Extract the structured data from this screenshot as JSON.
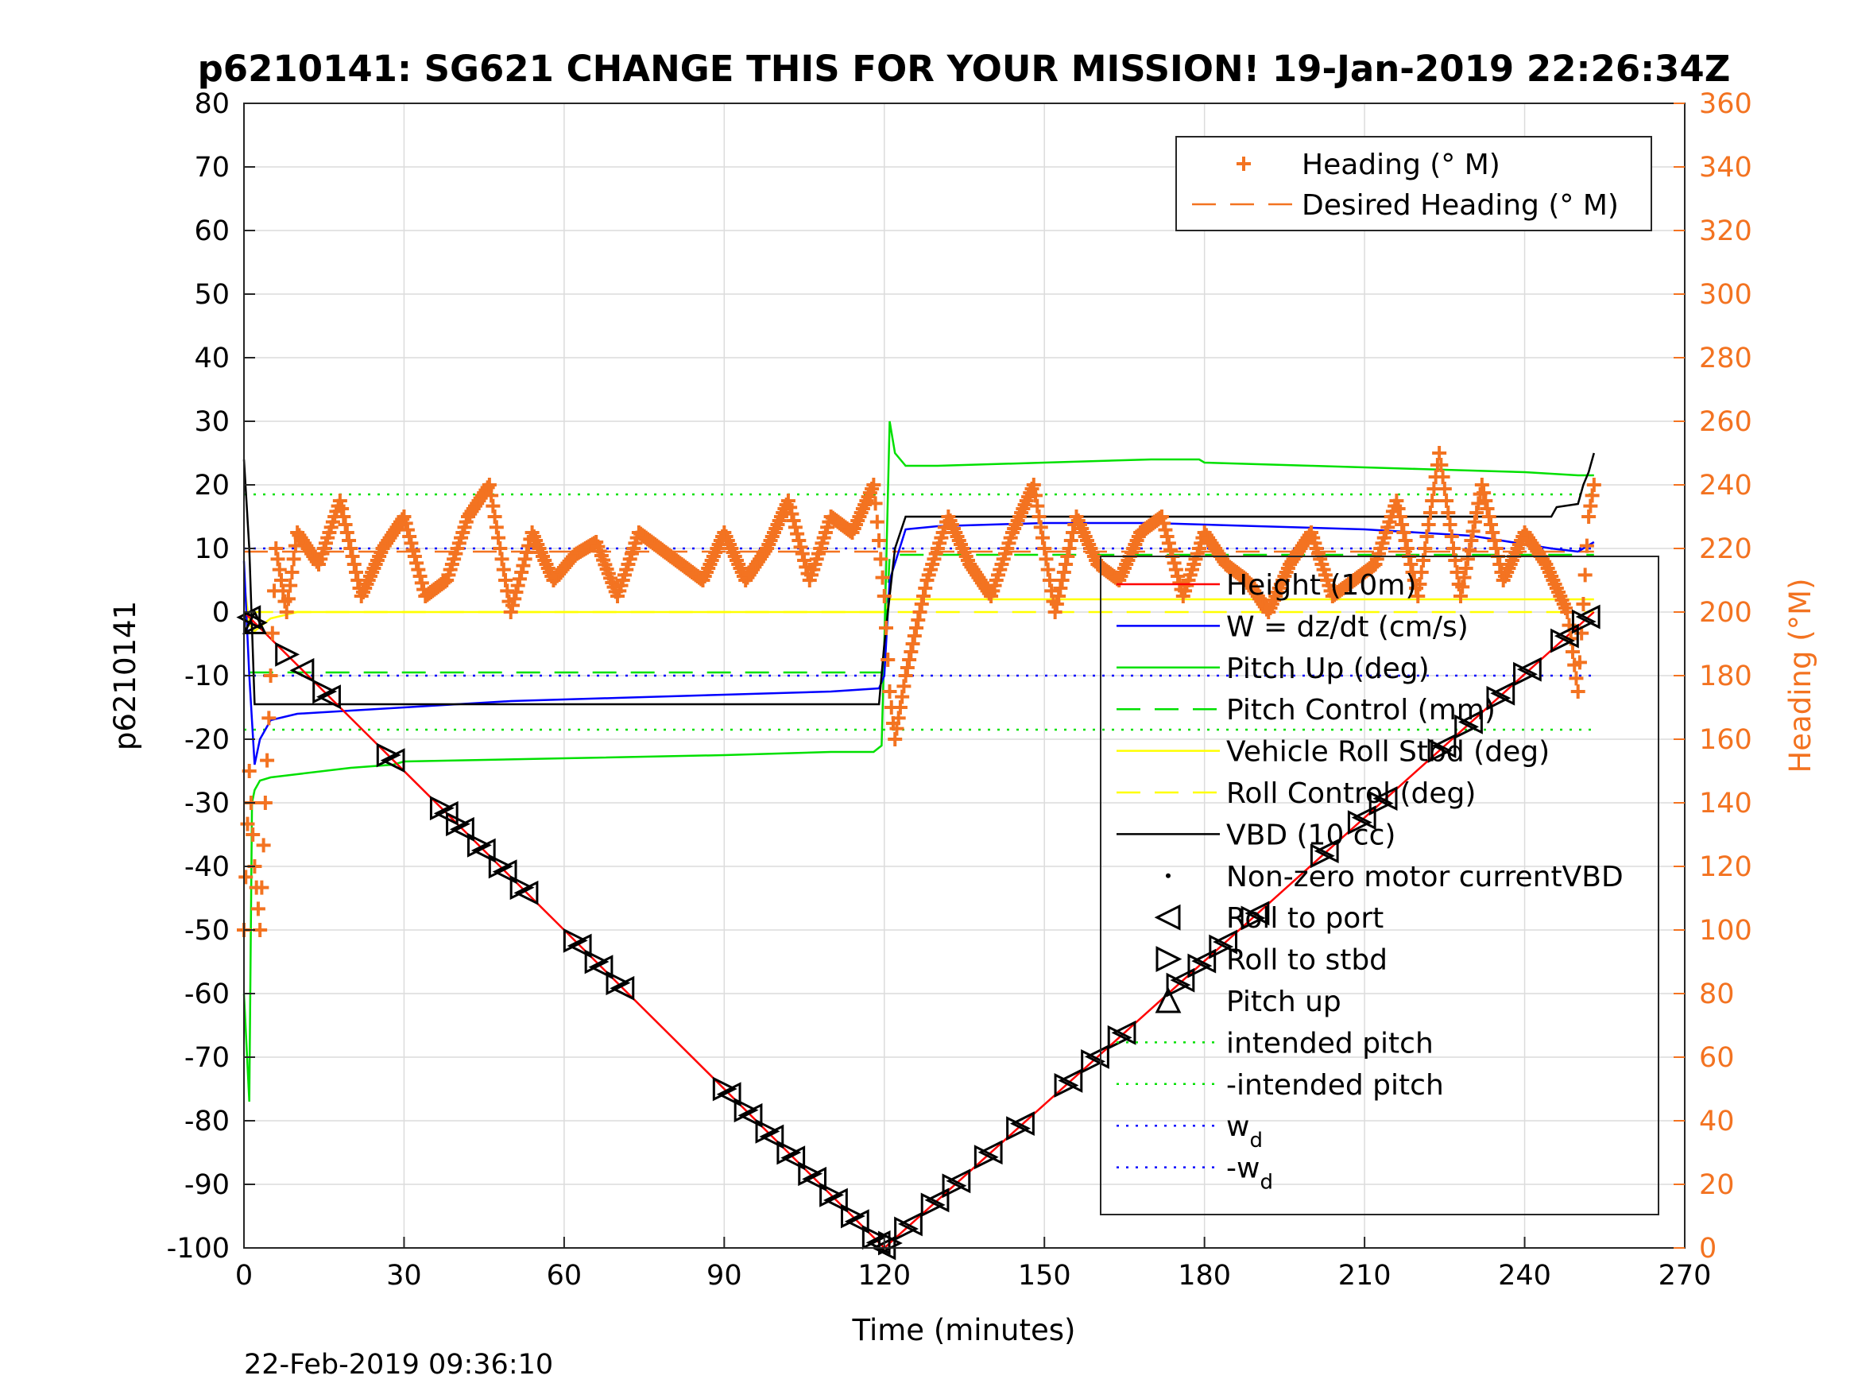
{
  "chart_data": {
    "type": "line",
    "title": "p6210141: SG621 CHANGE THIS FOR YOUR MISSION! 19-Jan-2019 22:26:34Z",
    "xlabel": "Time (minutes)",
    "ylabel_left": "p6210141",
    "ylabel_right": "Heading (°M)",
    "footer": "22-Feb-2019 09:36:10",
    "xlim": [
      0,
      270
    ],
    "ylim_left": [
      -100,
      80
    ],
    "ylim_right": [
      0,
      360
    ],
    "x_ticks": [
      "0",
      "30",
      "60",
      "90",
      "120",
      "150",
      "180",
      "210",
      "240",
      "270"
    ],
    "y_ticks_left": [
      "-100",
      "-90",
      "-80",
      "-70",
      "-60",
      "-50",
      "-40",
      "-30",
      "-20",
      "-10",
      "0",
      "10",
      "20",
      "30",
      "40",
      "50",
      "60",
      "70",
      "80"
    ],
    "y_ticks_right": [
      "0",
      "20",
      "40",
      "60",
      "80",
      "100",
      "120",
      "140",
      "160",
      "180",
      "200",
      "220",
      "240",
      "260",
      "280",
      "300",
      "320",
      "340",
      "360"
    ],
    "grid": true,
    "legend_right_axis": [
      {
        "label": "Heading (° M)",
        "style": "plus",
        "color": "#f37321"
      },
      {
        "label": "Desired Heading (° M)",
        "style": "dash",
        "color": "#f37321"
      }
    ],
    "legend_left_axis": [
      {
        "label": "Height (10m)",
        "style": "line",
        "color": "#ff0000"
      },
      {
        "label": "W = dz/dt (cm/s)",
        "style": "line",
        "color": "#0000ff"
      },
      {
        "label": "Pitch Up (deg)",
        "style": "line",
        "color": "#00e000"
      },
      {
        "label": "Pitch Control (mm)",
        "style": "dash",
        "color": "#00e000"
      },
      {
        "label": "Vehicle Roll Stbd (deg)",
        "style": "line",
        "color": "#ffff00"
      },
      {
        "label": "Roll Control (deg)",
        "style": "dash",
        "color": "#ffff00"
      },
      {
        "label": "VBD (10 cc)",
        "style": "line",
        "color": "#000000"
      },
      {
        "label": "Non-zero motor currentVBD",
        "style": "dot",
        "color": "#000000"
      },
      {
        "label": "Roll to port",
        "style": "tri-left",
        "color": "#000000"
      },
      {
        "label": "Roll to stbd",
        "style": "tri-right",
        "color": "#000000"
      },
      {
        "label": "Pitch up",
        "style": "tri-up",
        "color": "#000000"
      },
      {
        "label": "intended pitch",
        "style": "dot-line",
        "color": "#00e000"
      },
      {
        "label": "-intended pitch",
        "style": "dot-line",
        "color": "#00e000"
      },
      {
        "label": "w",
        "sub": "d",
        "style": "dot-line",
        "color": "#0000ff"
      },
      {
        "label": "-w",
        "sub": "d",
        "style": "dot-line",
        "color": "#0000ff"
      }
    ],
    "series": [
      {
        "name": "Height (10m)",
        "axis": "left",
        "color": "#ff0000",
        "x": [
          0,
          120,
          253
        ],
        "y": [
          0,
          -100,
          0
        ]
      },
      {
        "name": "W = dz/dt (cm/s)",
        "axis": "left",
        "color": "#0000ff",
        "x": [
          0,
          1,
          2,
          3,
          5,
          10,
          20,
          30,
          50,
          70,
          90,
          110,
          119,
          120,
          121,
          124,
          130,
          150,
          170,
          190,
          210,
          230,
          245,
          250,
          253
        ],
        "y": [
          8,
          -10,
          -24,
          -20,
          -17,
          -16,
          -15.5,
          -15,
          -14,
          -13.5,
          -13,
          -12.5,
          -12,
          -10,
          5,
          13,
          13.5,
          14,
          14,
          13.5,
          13,
          12,
          10,
          9.5,
          11
        ]
      },
      {
        "name": "Pitch Up (deg)",
        "axis": "left",
        "color": "#00e000",
        "x": [
          0,
          1,
          1.5,
          2,
          3,
          5,
          10,
          20,
          28,
          30,
          60,
          90,
          110,
          118,
          119.5,
          120,
          121,
          122,
          124,
          130,
          150,
          170,
          179,
          180,
          200,
          220,
          240,
          250,
          253
        ],
        "y": [
          -60,
          -77,
          -30,
          -28,
          -26.5,
          -26,
          -25.5,
          -24.5,
          -24,
          -23.5,
          -23,
          -22.5,
          -22,
          -22,
          -21,
          -5,
          30,
          25,
          23,
          23,
          23.5,
          24,
          24,
          23.5,
          23,
          22.5,
          22,
          21.5,
          21.5
        ]
      },
      {
        "name": "Pitch Control (mm)",
        "axis": "left",
        "color": "#00e000",
        "dash": true,
        "x": [
          1,
          120,
          121,
          253
        ],
        "y": [
          -9.5,
          -9.5,
          9,
          9
        ]
      },
      {
        "name": "Vehicle Roll Stbd (deg)",
        "axis": "left",
        "color": "#ffff00",
        "x": [
          0,
          1,
          2,
          5,
          10,
          120,
          121,
          125,
          253
        ],
        "y": [
          5,
          -2,
          -3,
          -1,
          0,
          0,
          2,
          2,
          2
        ]
      },
      {
        "name": "Roll Control (deg)",
        "axis": "left",
        "color": "#ffff00",
        "dash": true,
        "x": [
          1,
          253
        ],
        "y": [
          0,
          0
        ]
      },
      {
        "name": "VBD (10 cc)",
        "axis": "left",
        "color": "#000000",
        "x": [
          0,
          1,
          2,
          118,
          119,
          120,
          122,
          124,
          245,
          246,
          250,
          251,
          252,
          253
        ],
        "y": [
          24,
          10,
          -14.5,
          -14.5,
          -14.5,
          -5,
          10,
          15,
          15,
          16.5,
          17,
          20,
          22,
          25
        ]
      },
      {
        "name": "Heading (° M)",
        "axis": "right",
        "color": "#f37321",
        "marker": "plus",
        "x": [
          0,
          1,
          2,
          3,
          4,
          5,
          6,
          8,
          10,
          14,
          18,
          22,
          26,
          30,
          34,
          38,
          42,
          46,
          50,
          54,
          58,
          62,
          66,
          70,
          74,
          78,
          82,
          86,
          90,
          94,
          98,
          102,
          106,
          110,
          114,
          118,
          120,
          121,
          122,
          124,
          126,
          128,
          132,
          136,
          140,
          144,
          148,
          152,
          156,
          160,
          164,
          168,
          172,
          176,
          180,
          184,
          188,
          192,
          196,
          200,
          204,
          208,
          212,
          216,
          220,
          224,
          228,
          232,
          236,
          240,
          244,
          248,
          250,
          252,
          253
        ],
        "y": [
          100,
          150,
          120,
          100,
          140,
          180,
          220,
          200,
          225,
          215,
          235,
          205,
          220,
          230,
          205,
          210,
          230,
          240,
          200,
          225,
          210,
          218,
          222,
          205,
          225,
          220,
          215,
          210,
          225,
          210,
          220,
          235,
          210,
          230,
          225,
          240,
          205,
          175,
          160,
          180,
          195,
          210,
          230,
          215,
          205,
          225,
          240,
          200,
          230,
          215,
          210,
          225,
          230,
          205,
          225,
          215,
          210,
          200,
          215,
          225,
          205,
          210,
          215,
          235,
          205,
          250,
          205,
          240,
          210,
          225,
          215,
          200,
          175,
          230,
          240
        ]
      },
      {
        "name": "Desired Heading (° M)",
        "axis": "right",
        "color": "#f37321",
        "dash": true,
        "x": [
          0,
          253
        ],
        "y": [
          219,
          219
        ]
      },
      {
        "name": "intended pitch",
        "axis": "left",
        "color": "#00e000",
        "dotted": true,
        "x": [
          0,
          253
        ],
        "y": [
          18.5,
          18.5
        ]
      },
      {
        "name": "-intended pitch",
        "axis": "left",
        "color": "#00e000",
        "dotted": true,
        "x": [
          0,
          253
        ],
        "y": [
          -18.5,
          -18.5
        ]
      },
      {
        "name": "w_d",
        "axis": "left",
        "color": "#0000ff",
        "dotted": true,
        "x": [
          0,
          253
        ],
        "y": [
          10,
          10
        ]
      },
      {
        "name": "-w_d",
        "axis": "left",
        "color": "#0000ff",
        "dotted": true,
        "x": [
          0,
          253
        ],
        "y": [
          -10,
          -10
        ]
      }
    ],
    "markers": {
      "roll_to_port_x": [
        1,
        11,
        16,
        28,
        38,
        41,
        45,
        49,
        53,
        63,
        67,
        71,
        91,
        95,
        99,
        103,
        107,
        111,
        115,
        119,
        120,
        125,
        130,
        134,
        140,
        146,
        155,
        160,
        165,
        176,
        180,
        184,
        190,
        203,
        210,
        214,
        225,
        230,
        236,
        241,
        248,
        252
      ],
      "roll_to_stbd_x": [
        2,
        8,
        15,
        27,
        37,
        40,
        44,
        48,
        52,
        62,
        66,
        70,
        90,
        94,
        98,
        102,
        106,
        110,
        114,
        118,
        121,
        124,
        129,
        133,
        139,
        145,
        154,
        159,
        164,
        175,
        179,
        183,
        189,
        202,
        209,
        213,
        224,
        229,
        235,
        240,
        247,
        251
      ],
      "pitch_up_x": [
        2
      ]
    }
  }
}
